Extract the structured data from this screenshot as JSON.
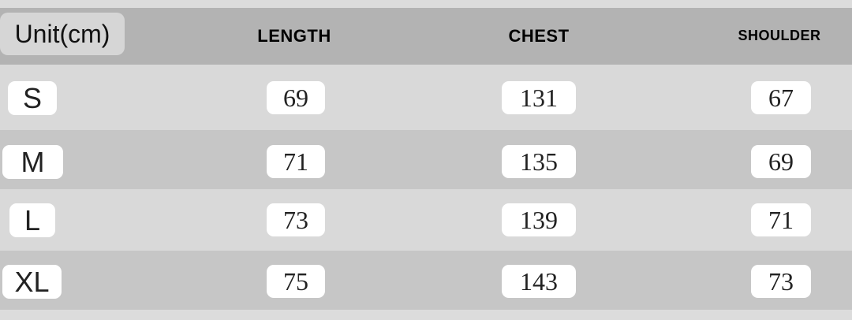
{
  "table": {
    "header": [
      "Unit(cm)",
      "LENGTH",
      "CHEST",
      "SHOULDER"
    ],
    "rows": [
      [
        "S",
        "69",
        "131",
        "67"
      ],
      [
        "M",
        "71",
        "135",
        "69"
      ],
      [
        "L",
        "73",
        "139",
        "71"
      ],
      [
        "XL",
        "75",
        "143",
        "73"
      ]
    ]
  }
}
